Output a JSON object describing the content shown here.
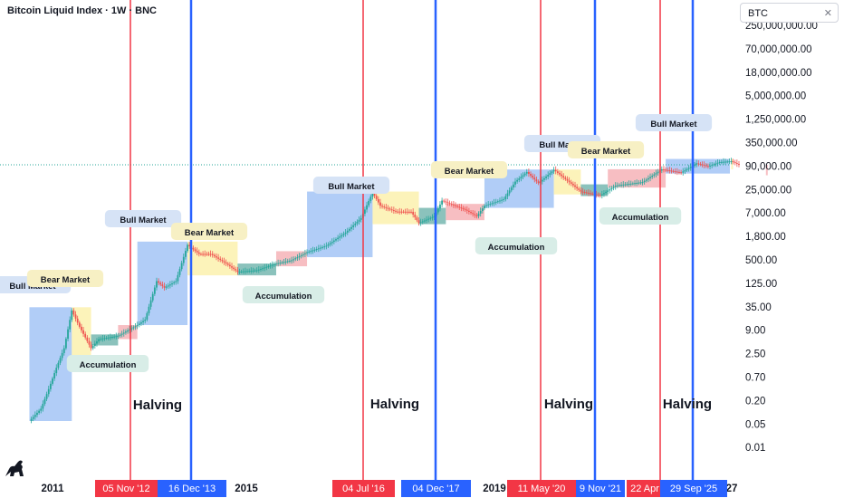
{
  "header": {
    "title": "Bitcoin Liquid Index · 1W · BNC"
  },
  "symbol_box": {
    "symbol": "BTC",
    "clear_icon": "close-icon"
  },
  "logo": {
    "icon": "dinosaur-logo-icon"
  },
  "colors": {
    "halving_line": "#f23645",
    "cycle_line": "#2962ff",
    "bull_zone": "#90b8f4",
    "bear_zone": "#fbee9c",
    "accum_zone": "#5aa8a0",
    "red_zone": "#f4a3a8",
    "candle_up": "#26a69a",
    "candle_down": "#ef5350",
    "price_line": "#26a69a"
  },
  "chart_data": {
    "type": "candlestick",
    "title": "Bitcoin Liquid Index · 1W · BNC",
    "y_scale": "log",
    "y_ticks": [
      "250,000,000.00",
      "70,000,000.00",
      "18,000,000.00",
      "5,000,000.00",
      "1,250,000.00",
      "350,000.00",
      "90,000.00",
      "25,000.00",
      "7,000.00",
      "1,800.00",
      "500.00",
      "125.00",
      "35.00",
      "9.00",
      "2.50",
      "0.70",
      "0.20",
      "0.05",
      "0.01"
    ],
    "x_ticks": [
      "2011",
      "2015",
      "2019",
      "27"
    ],
    "current_price": 90000,
    "halving_dates": [
      "05 Nov '12",
      "04 Jul '16",
      "11 May '20",
      "22 Apr"
    ],
    "cycle_top_dates": [
      "16 Dec '13",
      "04 Dec '17",
      "9 Nov '21",
      "29 Sep '25"
    ],
    "halving_label": "Halving",
    "price_path": [
      [
        "2010-07",
        0.05
      ],
      [
        "2010-10",
        0.1
      ],
      [
        "2010-12",
        0.3
      ],
      [
        "2011-02",
        1
      ],
      [
        "2011-04",
        3
      ],
      [
        "2011-06",
        25
      ],
      [
        "2011-08",
        10
      ],
      [
        "2011-11",
        3
      ],
      [
        "2012-01",
        5
      ],
      [
        "2012-06",
        6
      ],
      [
        "2012-11",
        11
      ],
      [
        "2013-01",
        15
      ],
      [
        "2013-04",
        130
      ],
      [
        "2013-06",
        90
      ],
      [
        "2013-09",
        130
      ],
      [
        "2013-12",
        1000
      ],
      [
        "2014-03",
        600
      ],
      [
        "2014-06",
        600
      ],
      [
        "2014-10",
        350
      ],
      [
        "2015-01",
        220
      ],
      [
        "2015-06",
        240
      ],
      [
        "2015-11",
        350
      ],
      [
        "2016-03",
        420
      ],
      [
        "2016-07",
        660
      ],
      [
        "2016-12",
        950
      ],
      [
        "2017-05",
        2000
      ],
      [
        "2017-09",
        4500
      ],
      [
        "2017-12",
        19000
      ],
      [
        "2018-02",
        9000
      ],
      [
        "2018-06",
        6500
      ],
      [
        "2018-10",
        6400
      ],
      [
        "2018-12",
        3400
      ],
      [
        "2019-04",
        5000
      ],
      [
        "2019-06",
        12000
      ],
      [
        "2019-12",
        7200
      ],
      [
        "2020-03",
        5000
      ],
      [
        "2020-05",
        9000
      ],
      [
        "2020-10",
        13000
      ],
      [
        "2021-01",
        35000
      ],
      [
        "2021-04",
        60000
      ],
      [
        "2021-07",
        32000
      ],
      [
        "2021-11",
        68000
      ],
      [
        "2022-06",
        20000
      ],
      [
        "2022-11",
        16000
      ],
      [
        "2023-03",
        28000
      ],
      [
        "2023-10",
        34000
      ],
      [
        "2024-03",
        70000
      ],
      [
        "2024-08",
        58000
      ],
      [
        "2024-12",
        98000
      ],
      [
        "2025-03",
        82000
      ],
      [
        "2025-06",
        105000
      ],
      [
        "2025-09",
        110000
      ],
      [
        "2025-11",
        90000
      ]
    ],
    "annotations": [
      {
        "label": "Bull Market",
        "zone": "bull",
        "from": "2010-07",
        "to": "2011-06",
        "low": 0.05,
        "high": 30
      },
      {
        "label": "Bear Market",
        "zone": "bear",
        "from": "2011-06",
        "to": "2011-11",
        "low": 2,
        "high": 30
      },
      {
        "label": "Accumulation",
        "zone": "accum",
        "from": "2011-11",
        "to": "2012-06",
        "low": 3.5,
        "high": 6.5
      },
      {
        "label": "",
        "zone": "red",
        "from": "2012-06",
        "to": "2012-11",
        "low": 5,
        "high": 11
      },
      {
        "label": "Bull Market",
        "zone": "bull",
        "from": "2012-11",
        "to": "2013-12",
        "low": 11,
        "high": 1200
      },
      {
        "label": "Bear Market",
        "zone": "bear",
        "from": "2013-12",
        "to": "2015-01",
        "low": 180,
        "high": 1200
      },
      {
        "label": "Accumulation",
        "zone": "accum",
        "from": "2015-01",
        "to": "2015-11",
        "low": 180,
        "high": 350
      },
      {
        "label": "",
        "zone": "red",
        "from": "2015-11",
        "to": "2016-07",
        "low": 300,
        "high": 700
      },
      {
        "label": "Bull Market",
        "zone": "bull",
        "from": "2016-07",
        "to": "2017-12",
        "low": 500,
        "high": 20000
      },
      {
        "label": "Bear Market",
        "zone": "bear",
        "from": "2017-12",
        "to": "2018-12",
        "low": 3200,
        "high": 20000
      },
      {
        "label": "Accumulation",
        "zone": "accum",
        "from": "2018-12",
        "to": "2019-07",
        "low": 3200,
        "high": 8000
      },
      {
        "label": "",
        "zone": "red",
        "from": "2019-07",
        "to": "2020-05",
        "low": 4000,
        "high": 10000
      },
      {
        "label": "Bull Market",
        "zone": "bull",
        "from": "2020-05",
        "to": "2021-11",
        "low": 8000,
        "high": 69000
      },
      {
        "label": "Bear Market",
        "zone": "bear",
        "from": "2021-11",
        "to": "2022-06",
        "low": 17000,
        "high": 69000
      },
      {
        "label": "Accumulation",
        "zone": "accum",
        "from": "2022-06",
        "to": "2023-01",
        "low": 15500,
        "high": 30000
      },
      {
        "label": "",
        "zone": "red",
        "from": "2023-01",
        "to": "2024-04",
        "low": 25000,
        "high": 70000
      },
      {
        "label": "Bull Market",
        "zone": "bull",
        "from": "2024-04",
        "to": "2025-09",
        "low": 55000,
        "high": 125000
      },
      {
        "label": "",
        "zone": "bear",
        "from": "2025-09",
        "to": "2026-06",
        "low": 70000,
        "high": 125000
      },
      {
        "label": "",
        "zone": "red",
        "from": "2026-06",
        "to": "2026-12",
        "low": 50000,
        "high": 90000
      }
    ]
  }
}
